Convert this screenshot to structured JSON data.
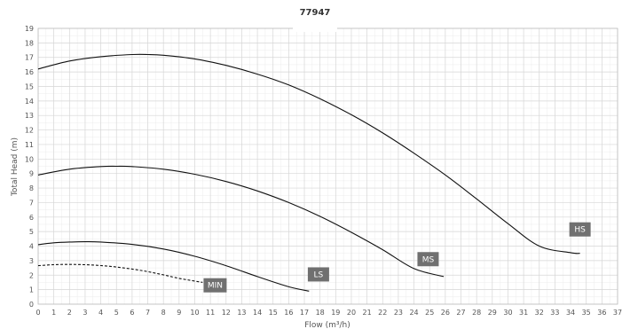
{
  "chart_data": {
    "type": "line",
    "title": "77947",
    "xlabel": "Flow (m³/h)",
    "ylabel": "Total Head (m)",
    "xlim": [
      0,
      37
    ],
    "ylim": [
      0,
      19
    ],
    "x_ticks": [
      0,
      1,
      2,
      3,
      4,
      5,
      6,
      7,
      8,
      9,
      10,
      11,
      12,
      13,
      14,
      15,
      16,
      17,
      18,
      19,
      20,
      21,
      22,
      23,
      24,
      25,
      26,
      27,
      28,
      29,
      30,
      31,
      32,
      33,
      34,
      35,
      36,
      37
    ],
    "y_ticks": [
      0,
      1,
      2,
      3,
      4,
      5,
      6,
      7,
      8,
      9,
      10,
      11,
      12,
      13,
      14,
      15,
      16,
      17,
      18,
      19
    ],
    "grid": "on",
    "colors": {
      "curve": "#111111",
      "label_box": "#707070",
      "grid_major": "#d6d6d6",
      "grid_minor": "#ececec",
      "axis": "#bdbdbd"
    },
    "series": [
      {
        "name": "HS",
        "style": "solid",
        "label_at": [
          34.6,
          5.15
        ],
        "x": [
          0,
          2,
          4,
          6,
          7,
          8,
          10,
          12,
          14,
          16,
          18,
          20,
          22,
          24,
          26,
          28,
          30,
          32,
          34,
          34.6
        ],
        "y": [
          16.2,
          16.75,
          17.05,
          17.2,
          17.2,
          17.15,
          16.9,
          16.45,
          15.85,
          15.1,
          14.15,
          13.05,
          11.8,
          10.4,
          8.9,
          7.25,
          5.55,
          4.0,
          3.55,
          3.5
        ]
      },
      {
        "name": "MS",
        "style": "solid",
        "label_at": [
          24.9,
          3.1
        ],
        "x": [
          0,
          2,
          4,
          5,
          6,
          8,
          10,
          12,
          14,
          16,
          18,
          20,
          22,
          24,
          25.9
        ],
        "y": [
          8.9,
          9.3,
          9.48,
          9.5,
          9.48,
          9.3,
          8.95,
          8.45,
          7.8,
          7.0,
          6.05,
          4.95,
          3.75,
          2.45,
          1.9
        ]
      },
      {
        "name": "LS",
        "style": "solid",
        "label_at": [
          17.9,
          2.05
        ],
        "x": [
          0,
          1,
          2,
          3,
          4,
          6,
          8,
          10,
          12,
          14,
          16,
          17.3
        ],
        "y": [
          4.1,
          4.23,
          4.28,
          4.3,
          4.28,
          4.12,
          3.8,
          3.3,
          2.65,
          1.9,
          1.2,
          0.9
        ]
      },
      {
        "name": "MIN",
        "style": "dashed",
        "label_at": [
          11.3,
          1.3
        ],
        "x": [
          0,
          1,
          2,
          3,
          4,
          5,
          6,
          7,
          8,
          9,
          10.5
        ],
        "y": [
          2.65,
          2.72,
          2.74,
          2.72,
          2.66,
          2.56,
          2.42,
          2.24,
          2.02,
          1.78,
          1.5
        ]
      }
    ]
  }
}
